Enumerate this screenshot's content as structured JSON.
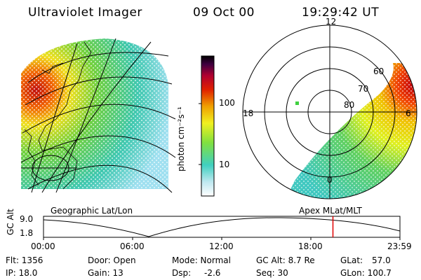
{
  "header": {
    "title": "Ultraviolet Imager",
    "date": "09 Oct 00",
    "time": "19:29:42 UT"
  },
  "panels": {
    "left_caption": "Geographic Lat/Lon",
    "right_caption": "Apex MLat/MLT"
  },
  "colorbar": {
    "unit_label": "photon cm⁻²s⁻¹",
    "tick_high": "100",
    "tick_low": "10"
  },
  "polar_plot": {
    "mlt_top": "12",
    "mlt_left": "18",
    "mlt_right": "6",
    "mlt_bottom": "0",
    "lat_60": "60",
    "lat_70": "70",
    "lat_80": "80"
  },
  "timeline": {
    "axis_label": "GC Alt",
    "y_ticks": [
      "9.0",
      "1.8"
    ],
    "x_ticks": [
      "00:00",
      "06:00",
      "12:00",
      "18:00",
      "23:59"
    ],
    "current_time_fraction": 0.812
  },
  "footer": {
    "flt": "Flt: 1356",
    "ip": "IP: 18.0",
    "door": "Door: Open",
    "gain": "Gain: 13",
    "mode": "Mode: Normal",
    "dsp": "Dsp:",
    "dsp_value": "-2.6",
    "gc_alt": "GC Alt: 8.7 Re",
    "seq": "Seq: 30",
    "glat": "GLat:",
    "glat_value": "57.0",
    "glon": "GLon: 100.7"
  },
  "colors": {
    "marker_line": "#e00000",
    "colorbar_stops": [
      "#ffffff",
      "#bfe8f0",
      "#40d0c0",
      "#80e040",
      "#f0f020",
      "#f0a000",
      "#e02000",
      "#b00030",
      "#400040",
      "#000000"
    ]
  }
}
